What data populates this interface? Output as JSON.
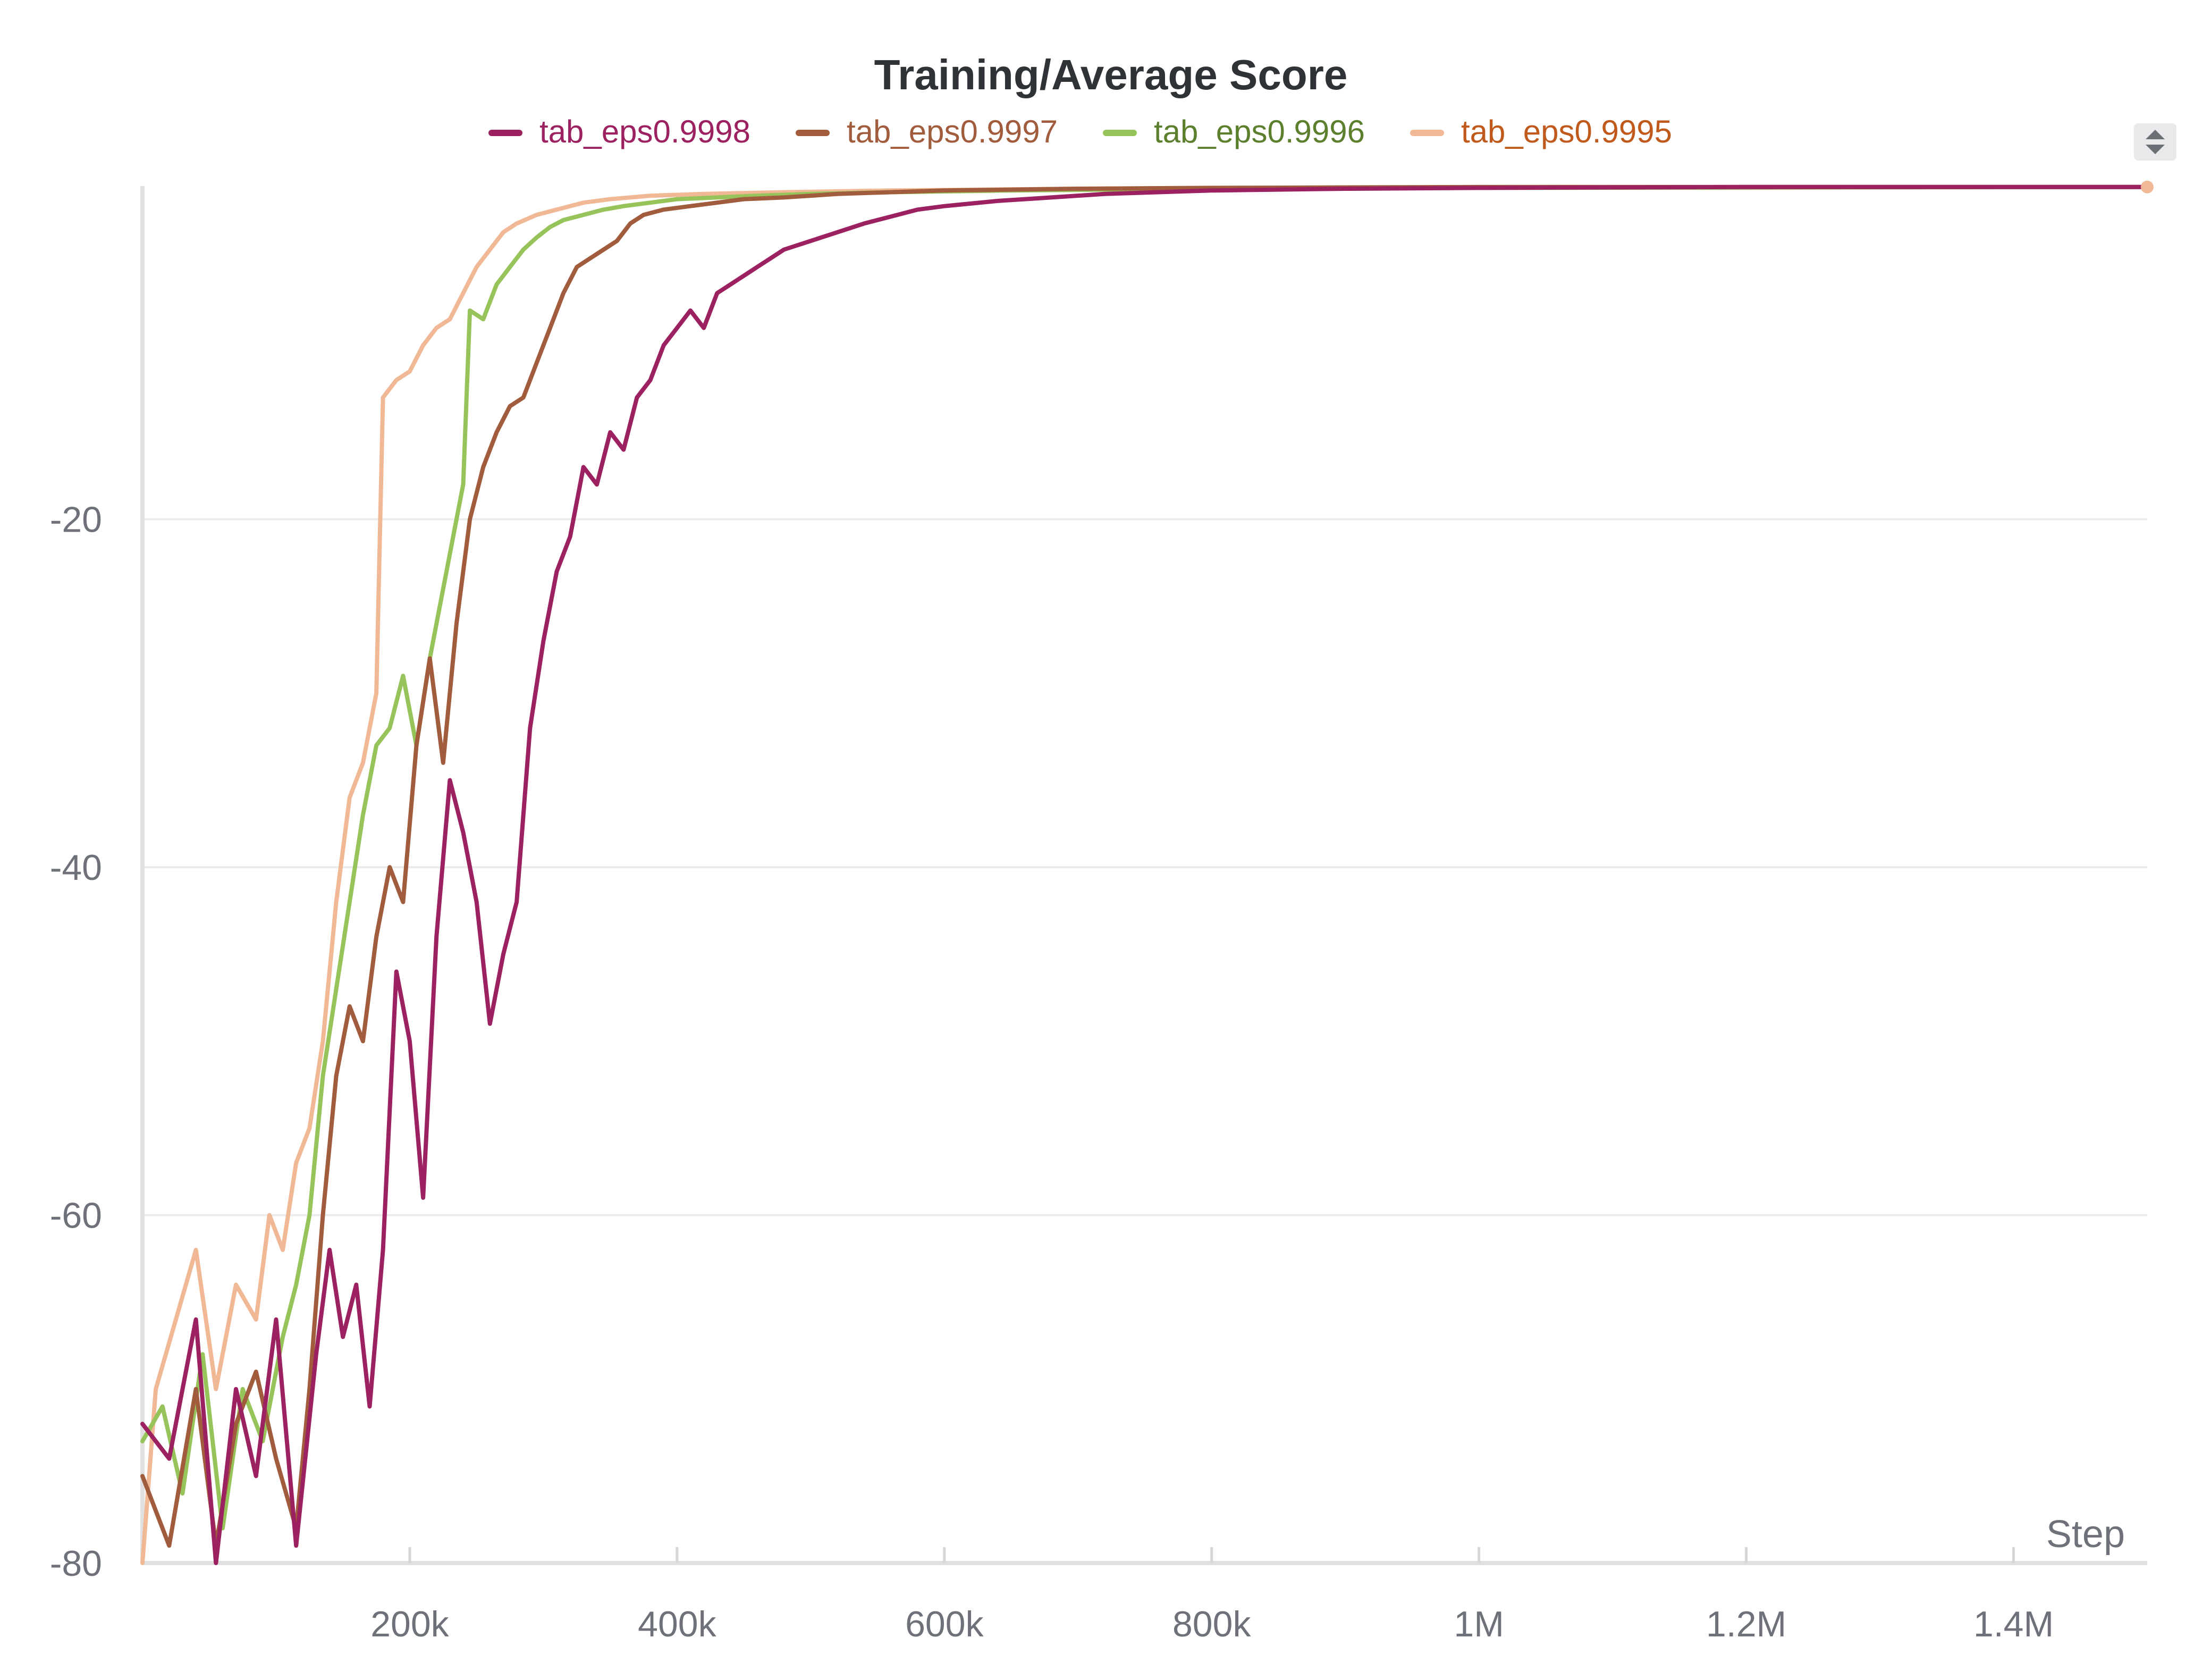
{
  "chart_data": {
    "type": "line",
    "title": "Training/Average Score",
    "xlabel": "Step",
    "ylabel": "",
    "xlim": [
      0,
      1500000
    ],
    "ylim": [
      -80,
      -1
    ],
    "x_ticks": [
      {
        "value": 200000,
        "label": "200k"
      },
      {
        "value": 400000,
        "label": "400k"
      },
      {
        "value": 600000,
        "label": "600k"
      },
      {
        "value": 800000,
        "label": "800k"
      },
      {
        "value": 1000000,
        "label": "1M"
      },
      {
        "value": 1200000,
        "label": "1.2M"
      },
      {
        "value": 1400000,
        "label": "1.4M"
      }
    ],
    "y_ticks": [
      {
        "value": -20,
        "label": "-20"
      },
      {
        "value": -40,
        "label": "-40"
      },
      {
        "value": -60,
        "label": "-60"
      },
      {
        "value": -80,
        "label": "-80"
      }
    ],
    "grid": true,
    "legend_position": "top-center",
    "series": [
      {
        "name": "tab_eps0.9998",
        "color": "#9c2160",
        "label_color": "#9c2160",
        "points": [
          [
            0,
            -72
          ],
          [
            20000,
            -74
          ],
          [
            40000,
            -66
          ],
          [
            55000,
            -80
          ],
          [
            70000,
            -70
          ],
          [
            85000,
            -75
          ],
          [
            100000,
            -66
          ],
          [
            115000,
            -79
          ],
          [
            130000,
            -68
          ],
          [
            140000,
            -62
          ],
          [
            150000,
            -67
          ],
          [
            160000,
            -64
          ],
          [
            170000,
            -71
          ],
          [
            180000,
            -62
          ],
          [
            190000,
            -46
          ],
          [
            200000,
            -50
          ],
          [
            210000,
            -59
          ],
          [
            220000,
            -44
          ],
          [
            230000,
            -35
          ],
          [
            240000,
            -38
          ],
          [
            250000,
            -42
          ],
          [
            260000,
            -49
          ],
          [
            270000,
            -45
          ],
          [
            280000,
            -42
          ],
          [
            290000,
            -32
          ],
          [
            300000,
            -27
          ],
          [
            310000,
            -23
          ],
          [
            320000,
            -21
          ],
          [
            330000,
            -17
          ],
          [
            340000,
            -18
          ],
          [
            350000,
            -15
          ],
          [
            360000,
            -16
          ],
          [
            370000,
            -13
          ],
          [
            380000,
            -12
          ],
          [
            390000,
            -10
          ],
          [
            400000,
            -9
          ],
          [
            410000,
            -8
          ],
          [
            420000,
            -9
          ],
          [
            430000,
            -7
          ],
          [
            440000,
            -6.5
          ],
          [
            450000,
            -6
          ],
          [
            460000,
            -5.5
          ],
          [
            470000,
            -5
          ],
          [
            480000,
            -4.5
          ],
          [
            500000,
            -4
          ],
          [
            520000,
            -3.5
          ],
          [
            540000,
            -3
          ],
          [
            560000,
            -2.6
          ],
          [
            580000,
            -2.2
          ],
          [
            600000,
            -2
          ],
          [
            640000,
            -1.7
          ],
          [
            680000,
            -1.5
          ],
          [
            720000,
            -1.3
          ],
          [
            760000,
            -1.2
          ],
          [
            800000,
            -1.1
          ],
          [
            900000,
            -1.0
          ],
          [
            1000000,
            -0.95
          ],
          [
            1200000,
            -0.9
          ],
          [
            1500000,
            -0.9
          ]
        ]
      },
      {
        "name": "tab_eps0.9997",
        "color": "#a15c3e",
        "label_color": "#a15c3e",
        "points": [
          [
            0,
            -75
          ],
          [
            20000,
            -79
          ],
          [
            40000,
            -70
          ],
          [
            55000,
            -79
          ],
          [
            70000,
            -72
          ],
          [
            85000,
            -69
          ],
          [
            100000,
            -74
          ],
          [
            115000,
            -78
          ],
          [
            125000,
            -70
          ],
          [
            135000,
            -60
          ],
          [
            145000,
            -52
          ],
          [
            155000,
            -48
          ],
          [
            165000,
            -50
          ],
          [
            175000,
            -44
          ],
          [
            185000,
            -40
          ],
          [
            195000,
            -42
          ],
          [
            205000,
            -33
          ],
          [
            215000,
            -28
          ],
          [
            225000,
            -34
          ],
          [
            235000,
            -26
          ],
          [
            245000,
            -20
          ],
          [
            255000,
            -17
          ],
          [
            265000,
            -15
          ],
          [
            275000,
            -13.5
          ],
          [
            285000,
            -13
          ],
          [
            295000,
            -11
          ],
          [
            305000,
            -9
          ],
          [
            315000,
            -7
          ],
          [
            325000,
            -5.5
          ],
          [
            335000,
            -5
          ],
          [
            345000,
            -4.5
          ],
          [
            355000,
            -4
          ],
          [
            365000,
            -3
          ],
          [
            375000,
            -2.5
          ],
          [
            390000,
            -2.2
          ],
          [
            410000,
            -2
          ],
          [
            430000,
            -1.8
          ],
          [
            450000,
            -1.6
          ],
          [
            480000,
            -1.5
          ],
          [
            520000,
            -1.3
          ],
          [
            560000,
            -1.2
          ],
          [
            600000,
            -1.1
          ],
          [
            700000,
            -1.0
          ],
          [
            800000,
            -0.95
          ],
          [
            1000000,
            -0.9
          ],
          [
            1500000,
            -0.9
          ]
        ]
      },
      {
        "name": "tab_eps0.9996",
        "color": "#96c35a",
        "label_color": "#5c7f2e",
        "points": [
          [
            0,
            -73
          ],
          [
            15000,
            -71
          ],
          [
            30000,
            -76
          ],
          [
            45000,
            -68
          ],
          [
            60000,
            -78
          ],
          [
            75000,
            -70
          ],
          [
            90000,
            -73
          ],
          [
            105000,
            -67
          ],
          [
            115000,
            -64
          ],
          [
            125000,
            -60
          ],
          [
            135000,
            -52
          ],
          [
            145000,
            -47
          ],
          [
            155000,
            -42
          ],
          [
            165000,
            -37
          ],
          [
            175000,
            -33
          ],
          [
            185000,
            -32
          ],
          [
            195000,
            -29
          ],
          [
            205000,
            -33
          ],
          [
            215000,
            -28
          ],
          [
            225000,
            -24
          ],
          [
            235000,
            -20
          ],
          [
            240000,
            -18
          ],
          [
            245000,
            -8
          ],
          [
            255000,
            -8.5
          ],
          [
            265000,
            -6.5
          ],
          [
            275000,
            -5.5
          ],
          [
            285000,
            -4.5
          ],
          [
            295000,
            -3.8
          ],
          [
            305000,
            -3.2
          ],
          [
            315000,
            -2.8
          ],
          [
            330000,
            -2.5
          ],
          [
            345000,
            -2.2
          ],
          [
            360000,
            -2
          ],
          [
            380000,
            -1.8
          ],
          [
            400000,
            -1.6
          ],
          [
            430000,
            -1.5
          ],
          [
            460000,
            -1.4
          ],
          [
            500000,
            -1.3
          ],
          [
            560000,
            -1.2
          ],
          [
            650000,
            -1.1
          ],
          [
            800000,
            -1.0
          ],
          [
            1000000,
            -0.95
          ],
          [
            1500000,
            -0.9
          ]
        ]
      },
      {
        "name": "tab_eps0.9995",
        "color": "#f0b894",
        "label_color": "#c05a1c",
        "points": [
          [
            0,
            -80
          ],
          [
            10000,
            -70
          ],
          [
            25000,
            -66
          ],
          [
            40000,
            -62
          ],
          [
            55000,
            -70
          ],
          [
            70000,
            -64
          ],
          [
            85000,
            -66
          ],
          [
            95000,
            -60
          ],
          [
            105000,
            -62
          ],
          [
            115000,
            -57
          ],
          [
            125000,
            -55
          ],
          [
            135000,
            -50
          ],
          [
            145000,
            -42
          ],
          [
            155000,
            -36
          ],
          [
            165000,
            -34
          ],
          [
            175000,
            -30
          ],
          [
            180000,
            -13
          ],
          [
            190000,
            -12
          ],
          [
            200000,
            -11.5
          ],
          [
            210000,
            -10
          ],
          [
            220000,
            -9
          ],
          [
            230000,
            -8.5
          ],
          [
            240000,
            -7
          ],
          [
            250000,
            -5.5
          ],
          [
            260000,
            -4.5
          ],
          [
            270000,
            -3.5
          ],
          [
            280000,
            -3
          ],
          [
            295000,
            -2.5
          ],
          [
            310000,
            -2.2
          ],
          [
            330000,
            -1.8
          ],
          [
            350000,
            -1.6
          ],
          [
            380000,
            -1.4
          ],
          [
            420000,
            -1.3
          ],
          [
            480000,
            -1.2
          ],
          [
            560000,
            -1.1
          ],
          [
            700000,
            -1.0
          ],
          [
            900000,
            -0.95
          ],
          [
            1200000,
            -0.9
          ],
          [
            1500000,
            -0.9
          ]
        ]
      }
    ]
  },
  "controls": {
    "sort_icon": "sort-up-down-icon"
  }
}
